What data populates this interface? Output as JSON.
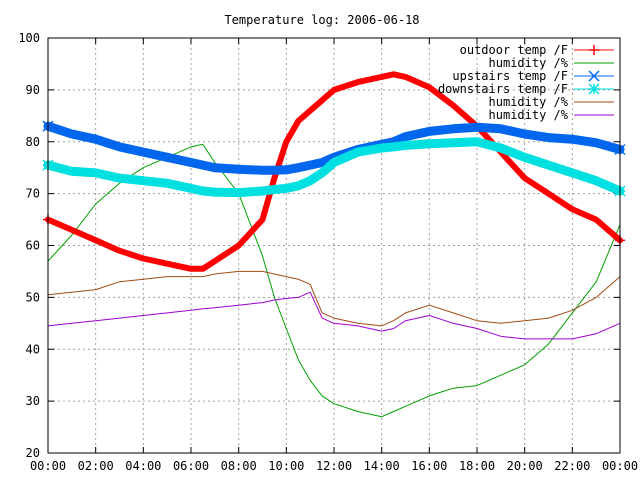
{
  "chart_data": {
    "type": "line",
    "title": "Temperature log: 2006-06-18",
    "xlabel": "",
    "ylabel": "",
    "ylim": [
      20,
      100
    ],
    "xlim": [
      0,
      24
    ],
    "grid": true,
    "legend_position": "top-right",
    "x_ticks": [
      "00:00",
      "02:00",
      "04:00",
      "06:00",
      "08:00",
      "10:00",
      "12:00",
      "14:00",
      "16:00",
      "18:00",
      "20:00",
      "22:00",
      "00:00"
    ],
    "y_ticks": [
      "20",
      "30",
      "40",
      "50",
      "60",
      "70",
      "80",
      "90",
      "100"
    ],
    "x": [
      0,
      1,
      2,
      3,
      4,
      5,
      6,
      6.5,
      7,
      8,
      9,
      9.5,
      10,
      10.5,
      11,
      11.5,
      12,
      13,
      14,
      14.5,
      15,
      16,
      17,
      18,
      19,
      20,
      21,
      22,
      23,
      24
    ],
    "series": [
      {
        "name": "outdoor temp /F",
        "color": "#ff0000",
        "marker": "+",
        "width": 6,
        "values": [
          65,
          63,
          61,
          59,
          57.5,
          56.5,
          55.5,
          55.5,
          57,
          60,
          65,
          73,
          80,
          84,
          86,
          88,
          90,
          91.5,
          92.5,
          93,
          92.5,
          90.5,
          87,
          83,
          78,
          73,
          70,
          67,
          65,
          61
        ]
      },
      {
        "name": "humidity /%",
        "color": "#00a000",
        "marker": "",
        "width": 1,
        "values": [
          57,
          62,
          68,
          72,
          75,
          77,
          79,
          79.5,
          76,
          70,
          58,
          50,
          44,
          38,
          34,
          31,
          29.5,
          28,
          27,
          28,
          29,
          31,
          32.5,
          33,
          35,
          37,
          41,
          47,
          53,
          64
        ]
      },
      {
        "name": "upstairs temp /F",
        "color": "#0066ee",
        "marker": "x",
        "width": 9,
        "values": [
          83,
          81.5,
          80.5,
          79,
          78,
          77,
          76,
          75.5,
          75,
          74.7,
          74.5,
          74.5,
          74.6,
          75,
          75.5,
          76,
          77,
          78.5,
          79.5,
          80,
          81,
          82,
          82.5,
          82.8,
          82.5,
          81.5,
          80.8,
          80.5,
          79.8,
          78.5
        ]
      },
      {
        "name": "downstairs temp /F",
        "color": "#00e0e0",
        "marker": "*",
        "width": 9,
        "values": [
          75.5,
          74.3,
          74,
          73,
          72.5,
          72,
          71,
          70.5,
          70.3,
          70.2,
          70.5,
          70.8,
          71,
          71.5,
          72.5,
          74,
          76,
          78,
          78.8,
          79,
          79.3,
          79.6,
          79.8,
          80,
          78.8,
          77,
          75.5,
          74,
          72.5,
          70.5
        ]
      },
      {
        "name": "humidity /%",
        "color": "#a04a10",
        "marker": "",
        "width": 1,
        "values": [
          50.5,
          51,
          51.5,
          53,
          53.5,
          54,
          54,
          54,
          54.5,
          55,
          55,
          54.5,
          54,
          53.5,
          52.5,
          47,
          46,
          45,
          44.5,
          45.5,
          47,
          48.5,
          47,
          45.5,
          45,
          45.5,
          46,
          47.5,
          50,
          54
        ]
      },
      {
        "name": "humidity /%",
        "color": "#a000d0",
        "marker": "",
        "width": 1,
        "values": [
          44.5,
          45,
          45.5,
          46,
          46.5,
          47,
          47.5,
          47.8,
          48,
          48.5,
          49,
          49.5,
          49.8,
          50,
          51,
          46,
          45,
          44.5,
          43.5,
          44,
          45.5,
          46.5,
          45,
          44,
          42.5,
          42,
          42,
          42,
          43,
          45
        ]
      }
    ]
  }
}
